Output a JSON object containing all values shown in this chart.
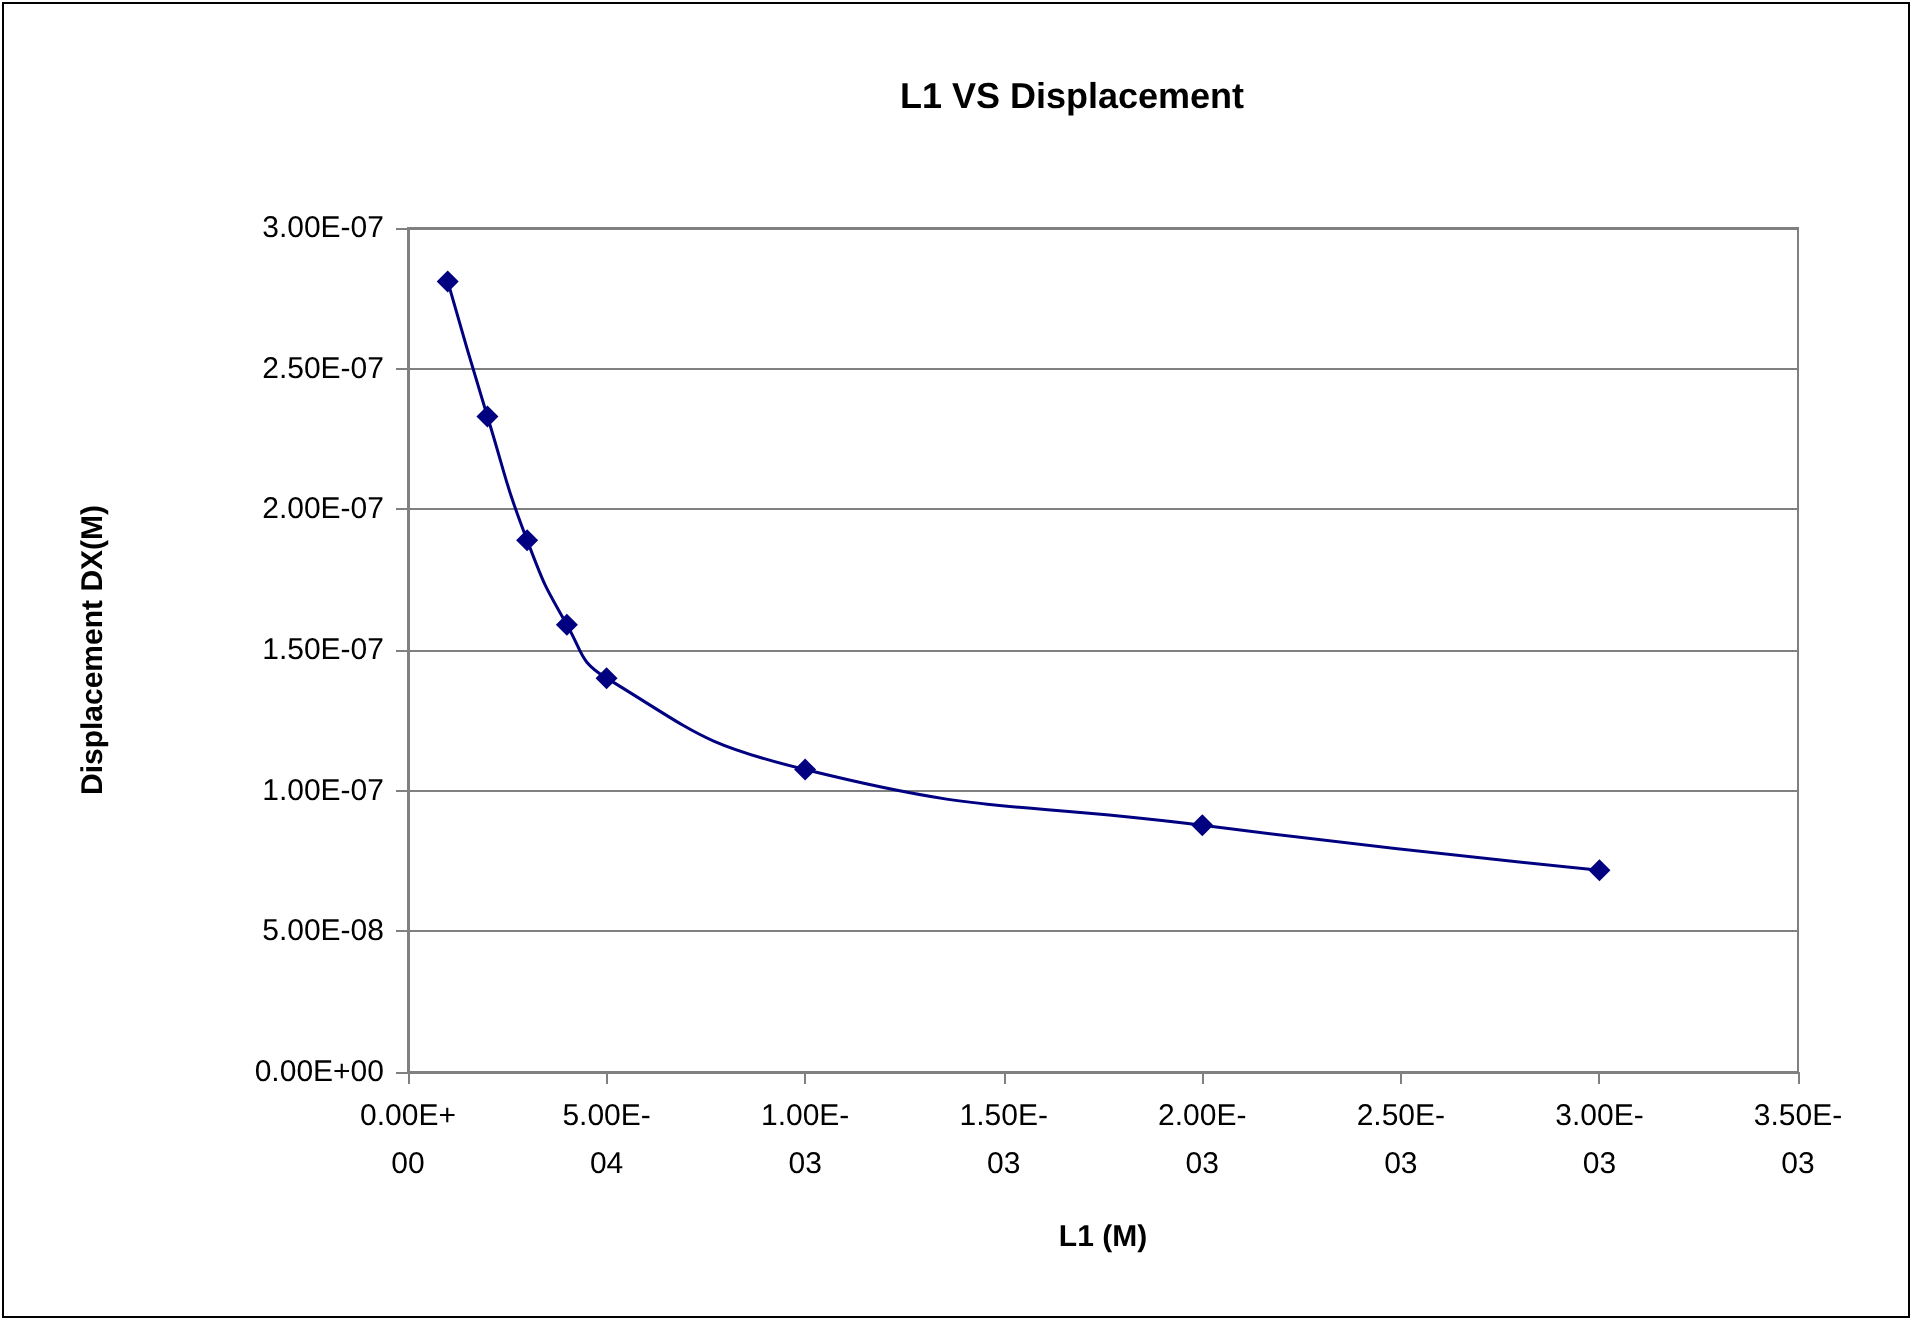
{
  "chart_data": {
    "type": "line",
    "title": "L1 VS Displacement",
    "xlabel": "L1 (M)",
    "ylabel": "Displacement DX(M)",
    "x": [
      0.0001,
      0.0002,
      0.0003,
      0.0004,
      0.0005,
      0.001,
      0.002,
      0.003
    ],
    "series": [
      {
        "color": "#000080",
        "values": [
          2.81e-07,
          2.33e-07,
          1.89e-07,
          1.59e-07,
          1.4e-07,
          1.075e-07,
          8.77e-08,
          7.17e-08
        ]
      }
    ],
    "xlim": [
      0,
      0.0035
    ],
    "xticks": [
      {
        "value": 0,
        "label": "0.00E+00"
      },
      {
        "value": 0.0005,
        "label": "5.00E-04"
      },
      {
        "value": 0.001,
        "label": "1.00E-03"
      },
      {
        "value": 0.0015,
        "label": "1.50E-03"
      },
      {
        "value": 0.002,
        "label": "2.00E-03"
      },
      {
        "value": 0.0025,
        "label": "2.50E-03"
      },
      {
        "value": 0.003,
        "label": "3.00E-03"
      },
      {
        "value": 0.0035,
        "label": "3.50E-03"
      }
    ],
    "ylim": [
      0,
      3e-07
    ],
    "yticks": [
      {
        "value": 0,
        "label": "0.00E+00"
      },
      {
        "value": 5e-08,
        "label": "5.00E-08"
      },
      {
        "value": 1e-07,
        "label": "1.00E-07"
      },
      {
        "value": 1.5e-07,
        "label": "1.50E-07"
      },
      {
        "value": 2e-07,
        "label": "2.00E-07"
      },
      {
        "value": 2.5e-07,
        "label": "2.50E-07"
      },
      {
        "value": 3e-07,
        "label": "3.00E-07"
      }
    ],
    "grid": "y",
    "legend": false,
    "marker": "diamond",
    "line_style": "solid"
  }
}
